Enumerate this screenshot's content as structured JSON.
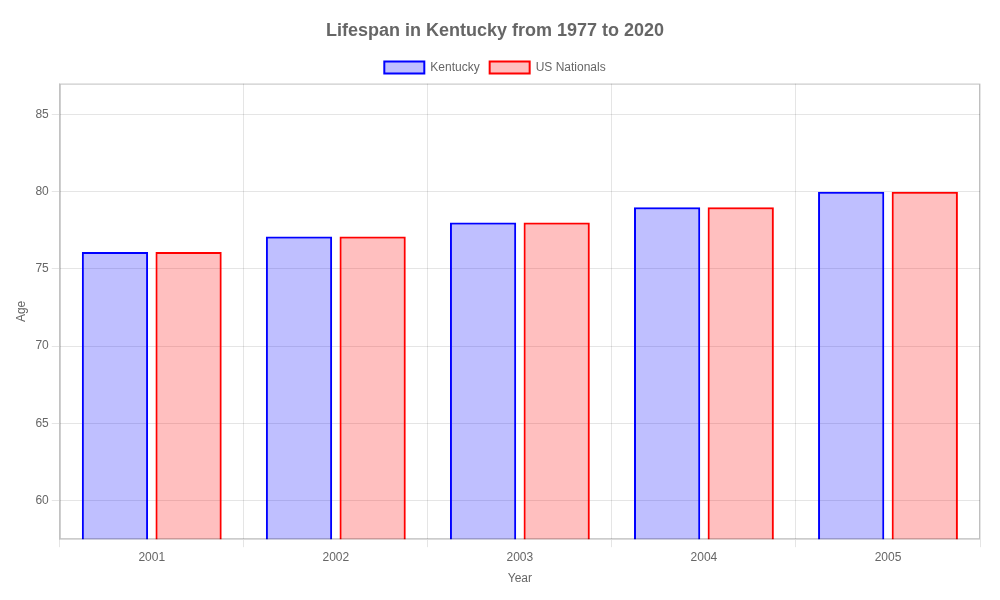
{
  "chart_data": {
    "type": "bar",
    "title": "Lifespan in Kentucky from 1977 to 2020",
    "x_label": "Year",
    "y_label": "Age",
    "categories": [
      "2001",
      "2002",
      "2003",
      "2004",
      "2005"
    ],
    "series": [
      {
        "name": "Kentucky",
        "color": "#0000ff",
        "values": [
          76.1,
          77.1,
          78.0,
          79.0,
          80.0
        ]
      },
      {
        "name": "US Nationals",
        "color": "#ff0000",
        "values": [
          76.1,
          77.1,
          78.0,
          79.0,
          80.0
        ]
      }
    ],
    "ylim": [
      57.5,
      87
    ],
    "yticks": [
      60,
      65,
      70,
      75,
      80,
      85
    ],
    "grid": true,
    "legend": "top"
  }
}
